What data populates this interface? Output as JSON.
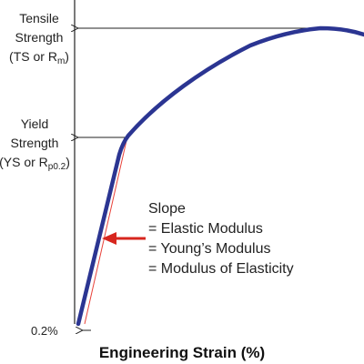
{
  "diagram": {
    "y_axis_labels": {
      "tensile_line1": "Tensile",
      "tensile_line2": "Strength",
      "tensile_abbrev": "(TS or R",
      "tensile_sub": "m",
      "tensile_close": ")",
      "yield_line1": "Yield",
      "yield_line2": "Strength",
      "yield_abbrev": "(YS or R",
      "yield_sub": "p0.2",
      "yield_close": ")"
    },
    "offset_label": "0.2%",
    "x_axis_title": "Engineering Strain (%)",
    "slope_annotation": {
      "line1": "Slope",
      "line2": "= Elastic Modulus",
      "line3": "= Young’s Modulus",
      "line4": "= Modulus of Elasticity"
    },
    "colors": {
      "curve": "#2b3592",
      "offset_line": "#e8423a",
      "pointer_arrow": "#d7261e",
      "axis": "#222222"
    }
  }
}
